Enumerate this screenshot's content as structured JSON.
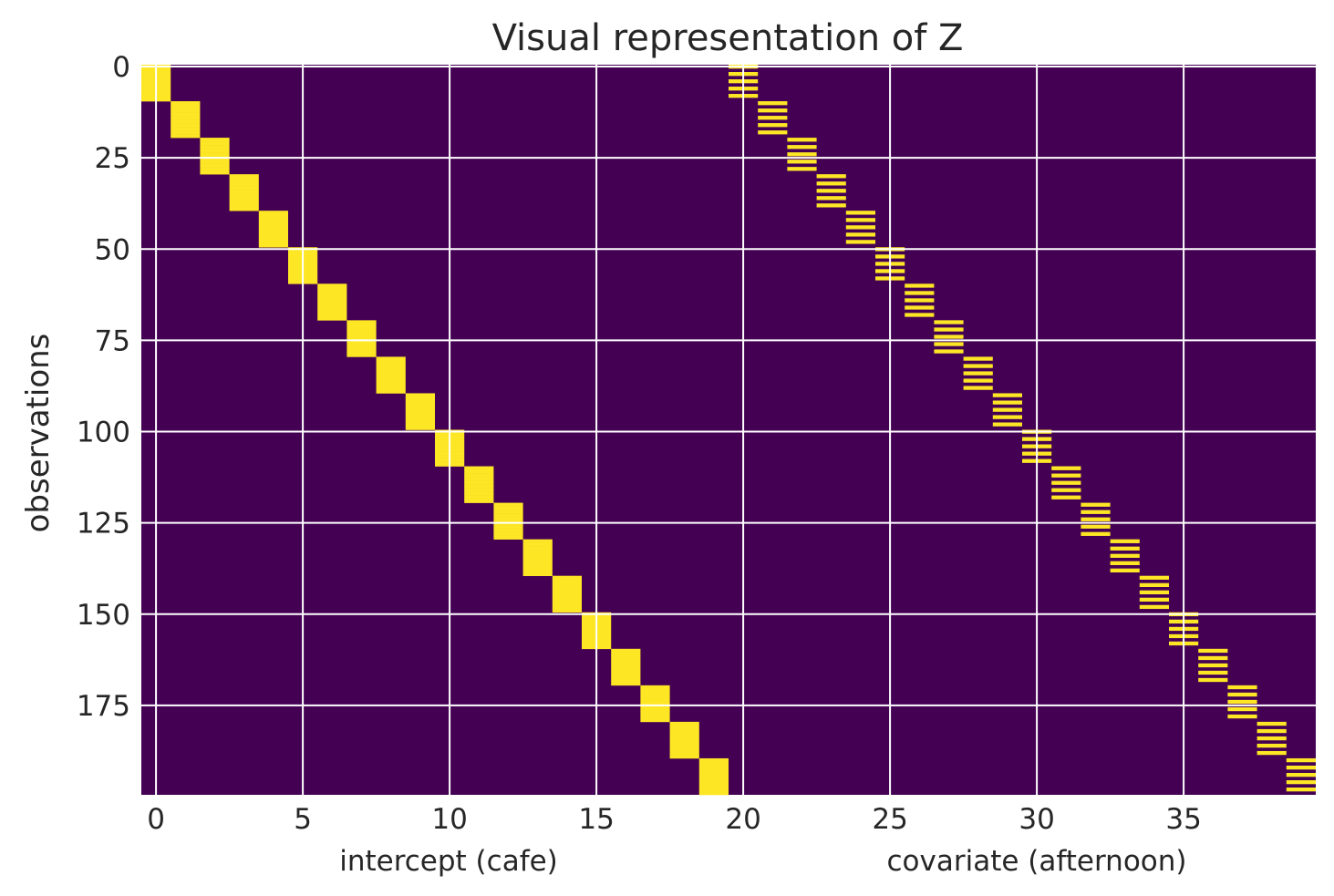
{
  "chart_data": {
    "type": "heatmap",
    "title": "Visual representation of Z",
    "ylabel": "observations",
    "xlabels": [
      "intercept (cafe)",
      "covariate (afternoon)"
    ],
    "n_rows": 200,
    "n_cols": 40,
    "xlim": [
      -0.5,
      39.5
    ],
    "ylim": [
      199.5,
      -0.5
    ],
    "xticks": [
      0,
      5,
      10,
      15,
      20,
      25,
      30,
      35
    ],
    "yticks": [
      0,
      25,
      50,
      75,
      100,
      125,
      150,
      175
    ],
    "grid": true,
    "colors": {
      "zero": "#440154",
      "one": "#fde725",
      "grid": "#ffffff"
    },
    "groups": 20,
    "rows_per_group": 10,
    "intercept_block": {
      "col_offset": 0,
      "active_rows": [
        0,
        1,
        2,
        3,
        4,
        5,
        6,
        7,
        8,
        9
      ]
    },
    "covariate_block": {
      "col_offset": 20,
      "active_rows": [
        0,
        2,
        4,
        6,
        8
      ]
    }
  }
}
